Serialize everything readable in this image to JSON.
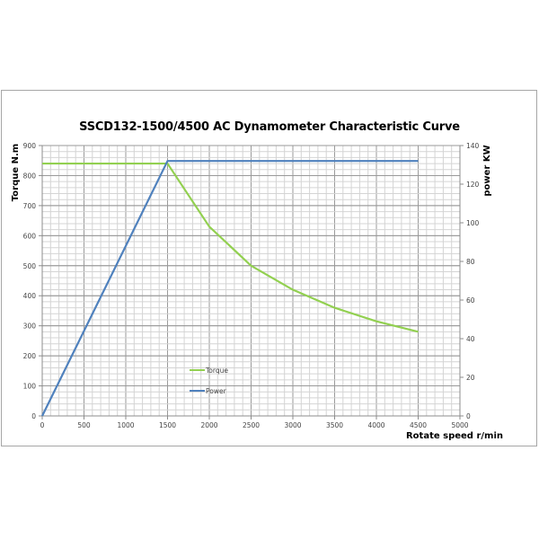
{
  "chart_data": {
    "type": "line",
    "title": "SSCD132-1500/4500  AC Dynamometer Characteristic Curve",
    "xlabel": "Rotate speed r/min",
    "ylabel": "Torque N.m",
    "y2label": "power KW",
    "xlim": [
      0,
      5000
    ],
    "ylim": [
      0,
      900
    ],
    "y2lim": [
      0,
      140
    ],
    "x_ticks": [
      0,
      500,
      1000,
      1500,
      2000,
      2500,
      3000,
      3500,
      4000,
      4500,
      5000
    ],
    "y_ticks": [
      0,
      100,
      200,
      300,
      400,
      500,
      600,
      700,
      800,
      900
    ],
    "y2_ticks": [
      0,
      20,
      40,
      60,
      80,
      100,
      120,
      140
    ],
    "grid": true,
    "legend_position": "inside-lower-left",
    "series": [
      {
        "name": "Torque",
        "axis": "left",
        "color": "#92d050",
        "x": [
          0,
          1500,
          2000,
          2500,
          3000,
          3500,
          4000,
          4500
        ],
        "values": [
          840,
          840,
          630,
          500,
          420,
          360,
          315,
          280
        ]
      },
      {
        "name": "Power",
        "axis": "right",
        "color": "#4f81bd",
        "x": [
          0,
          1500,
          4500
        ],
        "values": [
          0,
          132,
          132
        ]
      }
    ]
  }
}
